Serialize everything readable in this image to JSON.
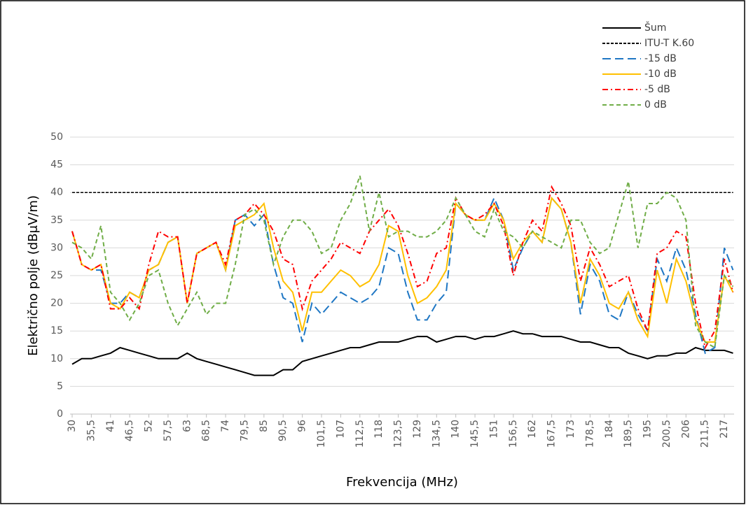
{
  "chart_data": {
    "type": "line",
    "ylabel": "Električno polje (dBμV/m)",
    "xlabel": "Frekvencija (MHz)",
    "x": [
      30,
      32.75,
      35.5,
      38.25,
      41,
      43.75,
      46.5,
      49.25,
      52,
      54.75,
      57.5,
      60.25,
      63,
      65.75,
      68.5,
      71.25,
      74,
      76.75,
      79.5,
      82.25,
      85,
      87.75,
      90.5,
      93.25,
      96,
      98.75,
      101.5,
      104.25,
      107,
      109.75,
      112.5,
      115.25,
      118,
      120.75,
      123.5,
      126.25,
      129,
      131.75,
      134.5,
      137.25,
      140,
      142.75,
      145.5,
      148.25,
      151,
      153.75,
      156.5,
      159.25,
      162,
      164.75,
      167.5,
      170.25,
      173,
      175.75,
      178.5,
      181.25,
      184,
      186.75,
      189.5,
      192.25,
      195,
      197.75,
      200.5,
      203.25,
      206,
      208.75,
      211.5,
      214.25,
      217,
      219.5
    ],
    "series": [
      {
        "name": "Šum",
        "color": "#000000",
        "dash": "solid",
        "values": [
          9,
          10,
          10,
          10.5,
          11,
          12,
          11.5,
          11,
          10.5,
          10,
          10,
          10,
          11,
          10,
          9.5,
          9,
          8.5,
          8,
          7.5,
          7,
          7,
          7,
          8,
          8,
          9.5,
          10,
          10.5,
          11,
          11.5,
          12,
          12,
          12.5,
          13,
          13,
          13,
          13.5,
          14,
          14,
          13,
          13.5,
          14,
          14,
          13.5,
          14,
          14,
          14.5,
          15,
          14.5,
          14.5,
          14,
          14,
          14,
          13.5,
          13,
          13,
          12.5,
          12,
          12,
          11,
          10.5,
          10,
          10.5,
          10.5,
          11,
          11,
          12,
          11.5,
          11.5,
          11.5,
          11
        ]
      },
      {
        "name": "ITU-T K.60",
        "color": "#000000",
        "dash": "dotted",
        "values": [
          40,
          40,
          40,
          40,
          40,
          40,
          40,
          40,
          40,
          40,
          40,
          40,
          40,
          40,
          40,
          40,
          40,
          40,
          40,
          40,
          40,
          40,
          40,
          40,
          40,
          40,
          40,
          40,
          40,
          40,
          40,
          40,
          40,
          40,
          40,
          40,
          40,
          40,
          40,
          40,
          40,
          40,
          40,
          40,
          40,
          40,
          40,
          40,
          40,
          40,
          40,
          40,
          40,
          40,
          40,
          40,
          40,
          40,
          40,
          40,
          40,
          40,
          40,
          40,
          40,
          40,
          40,
          40,
          40,
          40
        ]
      },
      {
        "name": "-15 dB",
        "color": "#1f77c4",
        "dash": "long-dash",
        "values": [
          33,
          27,
          26,
          26,
          20,
          20,
          22,
          21,
          26,
          27,
          31,
          32,
          20,
          29,
          30,
          31,
          26,
          35,
          36,
          34,
          36,
          27,
          21,
          20,
          13,
          20,
          18,
          20,
          22,
          21,
          20,
          21,
          23,
          30,
          29,
          22,
          17,
          17,
          20,
          22,
          38,
          36,
          35,
          35,
          39,
          35,
          26,
          30,
          33,
          31,
          39,
          37,
          31,
          18,
          27,
          24,
          18,
          17,
          22,
          18,
          15,
          28,
          24,
          30,
          26,
          18,
          11,
          12,
          30,
          26
        ]
      },
      {
        "name": "-10 dB",
        "color": "#ffc000",
        "dash": "solid",
        "values": [
          33,
          27,
          26,
          27,
          20,
          19,
          22,
          21,
          26,
          27,
          31,
          32,
          20,
          29,
          30,
          31,
          26,
          34,
          35,
          36,
          38,
          30,
          24,
          22,
          15,
          22,
          22,
          24,
          26,
          25,
          23,
          24,
          27,
          34,
          33,
          25,
          20,
          21,
          23,
          26,
          38,
          36,
          35,
          35,
          38,
          35,
          28,
          31,
          33,
          31,
          39,
          37,
          31,
          20,
          28,
          25,
          20,
          19,
          22,
          17,
          14,
          26,
          20,
          28,
          24,
          17,
          13,
          13,
          25,
          22
        ]
      },
      {
        "name": "-5 dB",
        "color": "#ff0000",
        "dash": "dash-dot",
        "values": [
          33,
          27,
          26,
          27,
          19,
          19,
          21,
          19,
          27,
          33,
          32,
          32,
          20,
          29,
          30,
          31,
          27,
          35,
          36,
          38,
          36,
          33,
          28,
          27,
          19,
          24,
          26,
          28,
          31,
          30,
          29,
          33,
          35,
          37,
          34,
          29,
          23,
          24,
          29,
          30,
          39,
          36,
          35,
          36,
          38,
          34,
          25,
          31,
          35,
          33,
          41,
          38,
          34,
          24,
          30,
          27,
          23,
          24,
          25,
          19,
          15,
          29,
          30,
          33,
          32,
          20,
          12,
          15,
          28,
          22
        ]
      },
      {
        "name": "0 dB",
        "color": "#70ad47",
        "dash": "dashed",
        "values": [
          31,
          30,
          28,
          34,
          22,
          20,
          17,
          20,
          25,
          26,
          20,
          16,
          19,
          22,
          18,
          20,
          20,
          27,
          36,
          37,
          35,
          27,
          32,
          35,
          35,
          33,
          29,
          30,
          35,
          38,
          43,
          33,
          40,
          32,
          33,
          33,
          32,
          32,
          33,
          35,
          39,
          36,
          33,
          32,
          37,
          33,
          32,
          30,
          33,
          32,
          31,
          30,
          35,
          35,
          31,
          29,
          30,
          36,
          42,
          30,
          38,
          38,
          40,
          39,
          35,
          16,
          13,
          12,
          25,
          23
        ]
      }
    ],
    "xlim": [
      29.4,
      219.8
    ],
    "xticks": [
      30,
      {
        "value": 35.5,
        "label": "35,5"
      },
      41,
      {
        "value": 46.5,
        "label": "46,5"
      },
      52,
      {
        "value": 57.5,
        "label": "57,5"
      },
      63,
      {
        "value": 68.5,
        "label": "68,5"
      },
      74,
      {
        "value": 79.5,
        "label": "79,5"
      },
      85,
      {
        "value": 90.5,
        "label": "90,5"
      },
      96,
      {
        "value": 101.5,
        "label": "101,5"
      },
      107,
      {
        "value": 112.5,
        "label": "112,5"
      },
      118,
      {
        "value": 123.5,
        "label": "123,5"
      },
      129,
      {
        "value": 134.5,
        "label": "134,5"
      },
      140,
      {
        "value": 145.5,
        "label": "145,5"
      },
      151,
      {
        "value": 156.5,
        "label": "156,5"
      },
      162,
      {
        "value": 167.5,
        "label": "167,5"
      },
      173,
      {
        "value": 178.5,
        "label": "178,5"
      },
      184,
      {
        "value": 189.5,
        "label": "189,5"
      },
      195,
      {
        "value": 200.5,
        "label": "200,5"
      },
      206,
      {
        "value": 211.5,
        "label": "211,5"
      },
      217
    ],
    "ylim": [
      0,
      50
    ],
    "yticks": [
      0,
      5,
      10,
      15,
      20,
      25,
      30,
      35,
      40,
      45,
      50
    ],
    "grid": true,
    "legend": "top-right"
  }
}
